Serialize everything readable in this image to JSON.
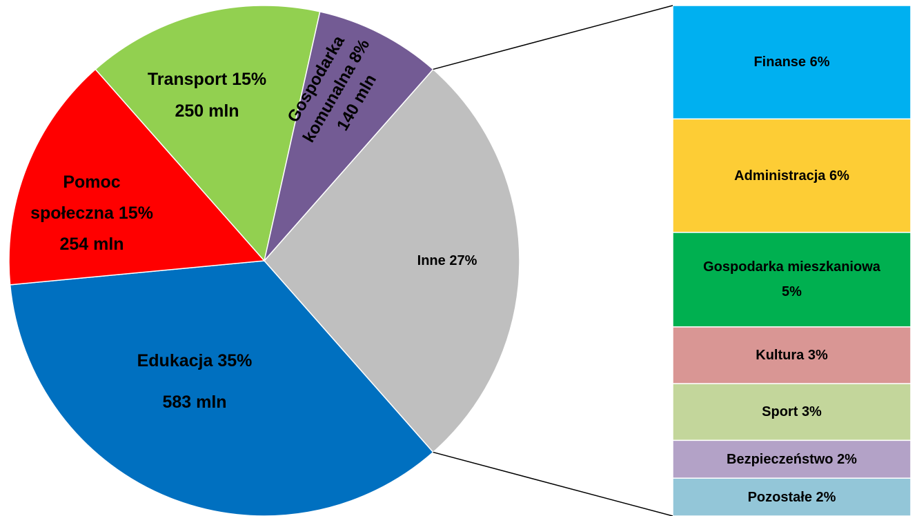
{
  "chart_data": {
    "type": "pie-of-bar",
    "categories": [
      "Inne",
      "Edukacja",
      "Pomoc społeczna",
      "Transport",
      "Gospodarka komunalna"
    ],
    "values": [
      27,
      35,
      15,
      15,
      8
    ],
    "value_labels": [
      "27%",
      "35%",
      "15%",
      "15%",
      "8%"
    ],
    "amount_labels": [
      null,
      "583 mln",
      "254 mln",
      "250 mln",
      "140 mln"
    ],
    "colors": [
      "#bfbfbf",
      "#0070c0",
      "#ff0000",
      "#92d050",
      "#735b94"
    ],
    "bar": {
      "categories": [
        "Finanse",
        "Administracja",
        "Gospodarka mieszkaniowa",
        "Kultura",
        "Sport",
        "Bezpieczeństwo",
        "Pozostałe"
      ],
      "values": [
        6,
        6,
        5,
        3,
        3,
        2,
        2
      ],
      "value_labels": [
        "6%",
        "6%",
        "5%",
        "3%",
        "3%",
        "2%",
        "2%"
      ],
      "colors": [
        "#00b0f0",
        "#fdcd35",
        "#00b050",
        "#d99694",
        "#c3d69b",
        "#b3a2c7",
        "#93c6d8"
      ]
    }
  }
}
